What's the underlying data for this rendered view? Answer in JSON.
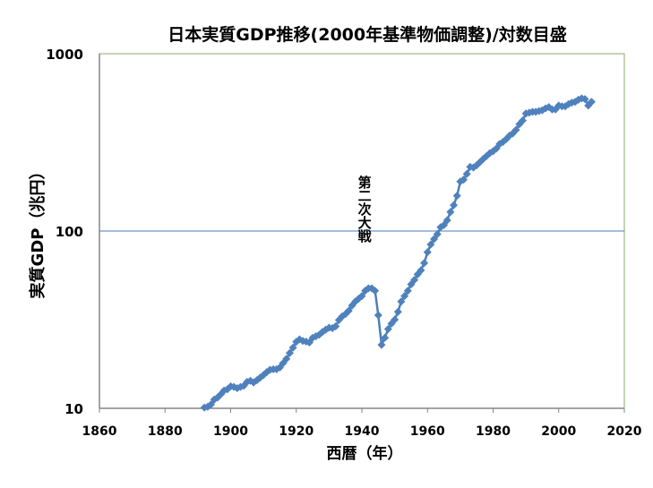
{
  "chart_data": {
    "type": "line",
    "title": "日本実質GDP推移(2000年基準物価調整)/対数目盛",
    "xlabel": "西暦（年）",
    "ylabel": "実質GDP（兆円）",
    "yscale": "log",
    "xlim": [
      1860,
      2020
    ],
    "ylim": [
      10,
      1000
    ],
    "x_ticks": [
      "1860",
      "1880",
      "1900",
      "1920",
      "1940",
      "1960",
      "1980",
      "2000",
      "2020"
    ],
    "y_ticks": [
      "10",
      "100",
      "1000"
    ],
    "annotation": "第二次大戦",
    "annotation_year": 1941,
    "annotation_value": 100,
    "line_color": "#4a7ebb",
    "marker_color": "#4f81bd",
    "series": [
      {
        "name": "実質GDP",
        "x": [
          1892,
          1893,
          1894,
          1895,
          1896,
          1897,
          1898,
          1899,
          1900,
          1901,
          1902,
          1903,
          1904,
          1905,
          1906,
          1907,
          1908,
          1909,
          1910,
          1911,
          1912,
          1913,
          1914,
          1915,
          1916,
          1917,
          1918,
          1919,
          1920,
          1921,
          1922,
          1923,
          1924,
          1925,
          1926,
          1927,
          1928,
          1929,
          1930,
          1931,
          1932,
          1933,
          1934,
          1935,
          1936,
          1937,
          1938,
          1939,
          1940,
          1941,
          1942,
          1943,
          1944,
          1945,
          1946,
          1947,
          1948,
          1949,
          1950,
          1951,
          1952,
          1953,
          1954,
          1955,
          1956,
          1957,
          1958,
          1959,
          1960,
          1961,
          1962,
          1963,
          1964,
          1965,
          1966,
          1967,
          1968,
          1969,
          1970,
          1971,
          1972,
          1973,
          1974,
          1975,
          1976,
          1977,
          1978,
          1979,
          1980,
          1981,
          1982,
          1983,
          1984,
          1985,
          1986,
          1987,
          1988,
          1989,
          1990,
          1991,
          1992,
          1993,
          1994,
          1995,
          1996,
          1997,
          1998,
          1999,
          2000,
          2001,
          2002,
          2003,
          2004,
          2005,
          2006,
          2007,
          2008,
          2009,
          2010
        ],
        "values": [
          10.1,
          10.2,
          10.5,
          11.2,
          11.5,
          12.0,
          12.6,
          12.8,
          13.3,
          13.2,
          13.0,
          13.2,
          13.4,
          14.1,
          14.3,
          14.0,
          14.4,
          14.9,
          15.4,
          16.0,
          16.5,
          16.6,
          16.6,
          17.0,
          18.0,
          19.0,
          20.5,
          22.0,
          23.7,
          24.5,
          24.0,
          23.8,
          23.5,
          25.0,
          25.5,
          26.0,
          27.0,
          27.8,
          28.5,
          28.3,
          29.0,
          31.5,
          33.0,
          34.0,
          35.5,
          38.0,
          40.0,
          41.5,
          43.0,
          46.0,
          47.5,
          47.5,
          46.0,
          33.5,
          22.8,
          25.0,
          28.0,
          30.0,
          31.6,
          35.0,
          40.0,
          43.0,
          46.0,
          50.0,
          53.0,
          57.0,
          60.0,
          66.0,
          76.0,
          84.0,
          90.0,
          96.0,
          105.0,
          108.0,
          115.0,
          128.0,
          140.0,
          158.0,
          190.0,
          195.0,
          210.0,
          230.0,
          228.0,
          235.0,
          245.0,
          255.0,
          265.0,
          275.0,
          282.0,
          292.0,
          310.0,
          318.0,
          330.0,
          345.0,
          355.0,
          372.0,
          400.0,
          420.0,
          460.0,
          465.0,
          470.0,
          470.0,
          475.0,
          480.0,
          492.0,
          500.0,
          485.0,
          485.0,
          510.0,
          505.0,
          505.0,
          520.0,
          530.0,
          535.0,
          550.0,
          560.0,
          555.0,
          510.0,
          535.0
        ]
      }
    ]
  }
}
